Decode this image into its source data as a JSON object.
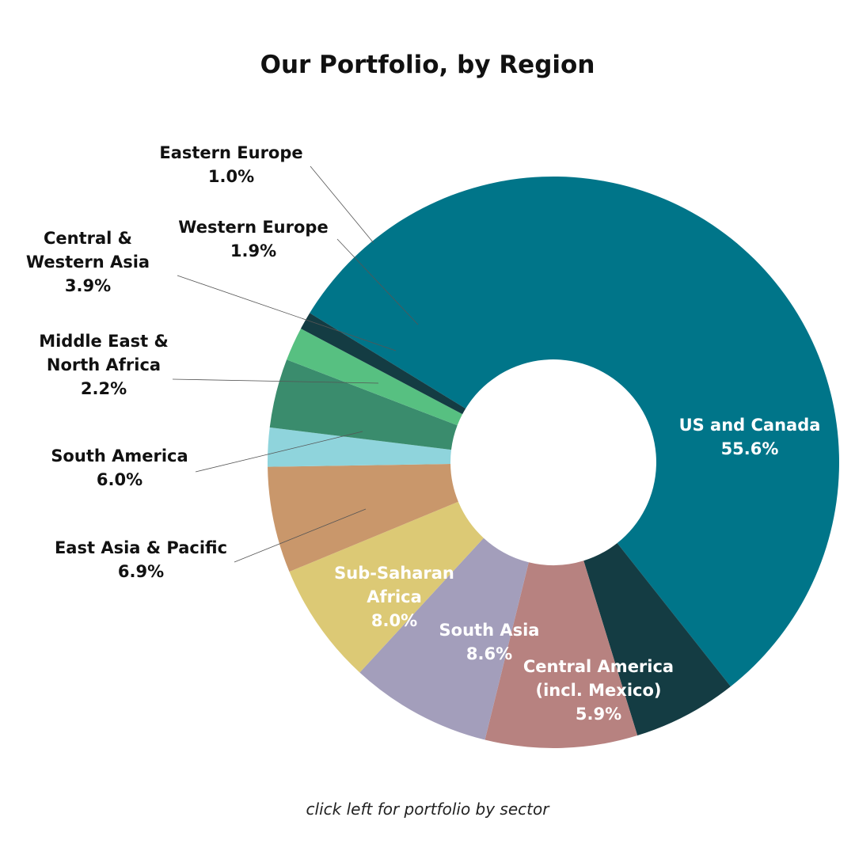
{
  "chart_data": {
    "type": "pie",
    "title": "Our Portfolio, by Region",
    "series": [
      {
        "name": "US and Canada",
        "lines": [
          "US and Canada"
        ],
        "pct_label": "55.6%",
        "value": 55.6,
        "color": "#007589",
        "label_color": "#ffffff"
      },
      {
        "name": "Central America (incl. Mexico)",
        "lines": [
          "Central America",
          "(incl. Mexico)"
        ],
        "pct_label": "5.9%",
        "value": 5.9,
        "color": "#143c43",
        "label_color": "#ffffff"
      },
      {
        "name": "South Asia",
        "lines": [
          "South Asia"
        ],
        "pct_label": "8.6%",
        "value": 8.6,
        "color": "#b78280",
        "label_color": "#ffffff"
      },
      {
        "name": "Sub-Saharan Africa",
        "lines": [
          "Sub-Saharan",
          "Africa"
        ],
        "pct_label": "8.0%",
        "value": 8.0,
        "color": "#a39ebb",
        "label_color": "#ffffff"
      },
      {
        "name": "East Asia & Pacific",
        "lines": [
          "East Asia & Pacific"
        ],
        "pct_label": "6.9%",
        "value": 6.9,
        "color": "#dcc975",
        "label_color": "#111111"
      },
      {
        "name": "South America",
        "lines": [
          "South America"
        ],
        "pct_label": "6.0%",
        "value": 6.0,
        "color": "#c9976b",
        "label_color": "#111111"
      },
      {
        "name": "Middle East & North Africa",
        "lines": [
          "Middle East &",
          "North Africa"
        ],
        "pct_label": "2.2%",
        "value": 2.2,
        "color": "#8fd4dc",
        "label_color": "#111111"
      },
      {
        "name": "Central & Western Asia",
        "lines": [
          "Central &",
          "Western Asia"
        ],
        "pct_label": "3.9%",
        "value": 3.9,
        "color": "#3a8c6d",
        "label_color": "#111111"
      },
      {
        "name": "Western Europe",
        "lines": [
          "Western Europe"
        ],
        "pct_label": "1.9%",
        "value": 1.9,
        "color": "#57c081",
        "label_color": "#111111"
      },
      {
        "name": "Eastern Europe",
        "lines": [
          "Eastern Europe"
        ],
        "pct_label": "1.0%",
        "value": 1.0,
        "color": "#143c43",
        "label_color": "#111111"
      }
    ],
    "inner_hole": true,
    "legend": "none"
  },
  "footnote": "click left for portfolio by sector"
}
